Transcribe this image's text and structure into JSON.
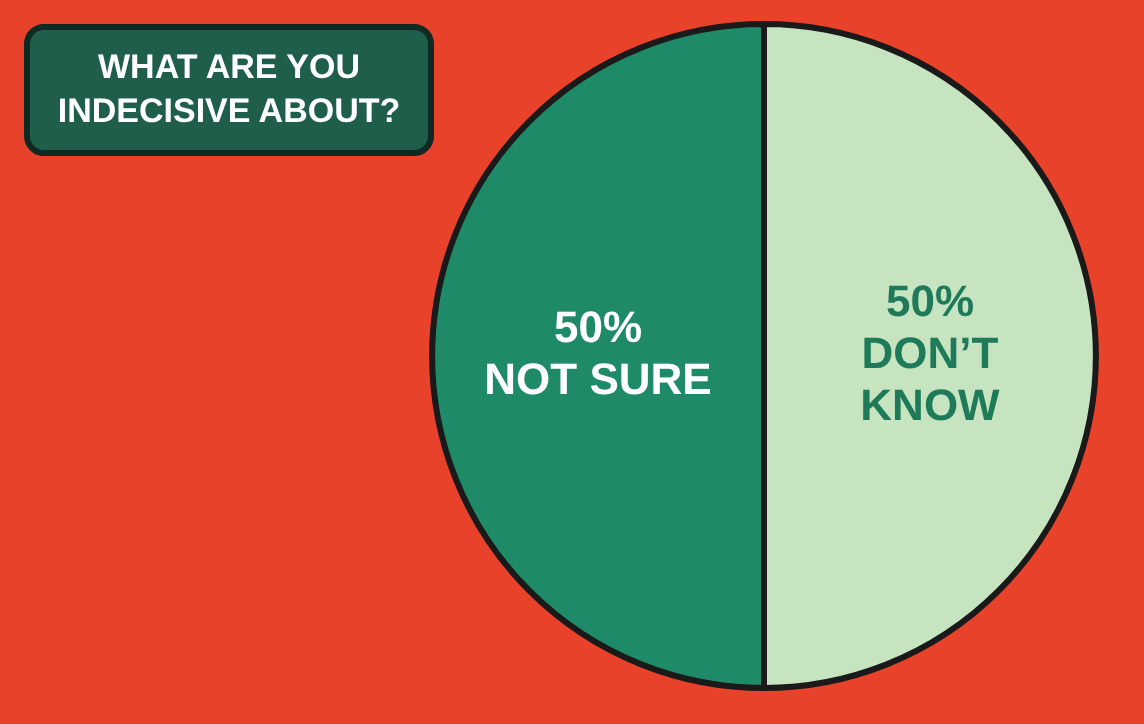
{
  "chart_data": {
    "type": "pie",
    "title": "WHAT ARE YOU\nINDECISIVE ABOUT?",
    "categories": [
      "DON’T KNOW",
      "NOT SURE"
    ],
    "values": [
      50,
      50
    ],
    "value_labels": [
      "50%",
      "50%"
    ],
    "colors": [
      "#c6e4c0",
      "#1f8a68"
    ],
    "legend": false
  }
}
